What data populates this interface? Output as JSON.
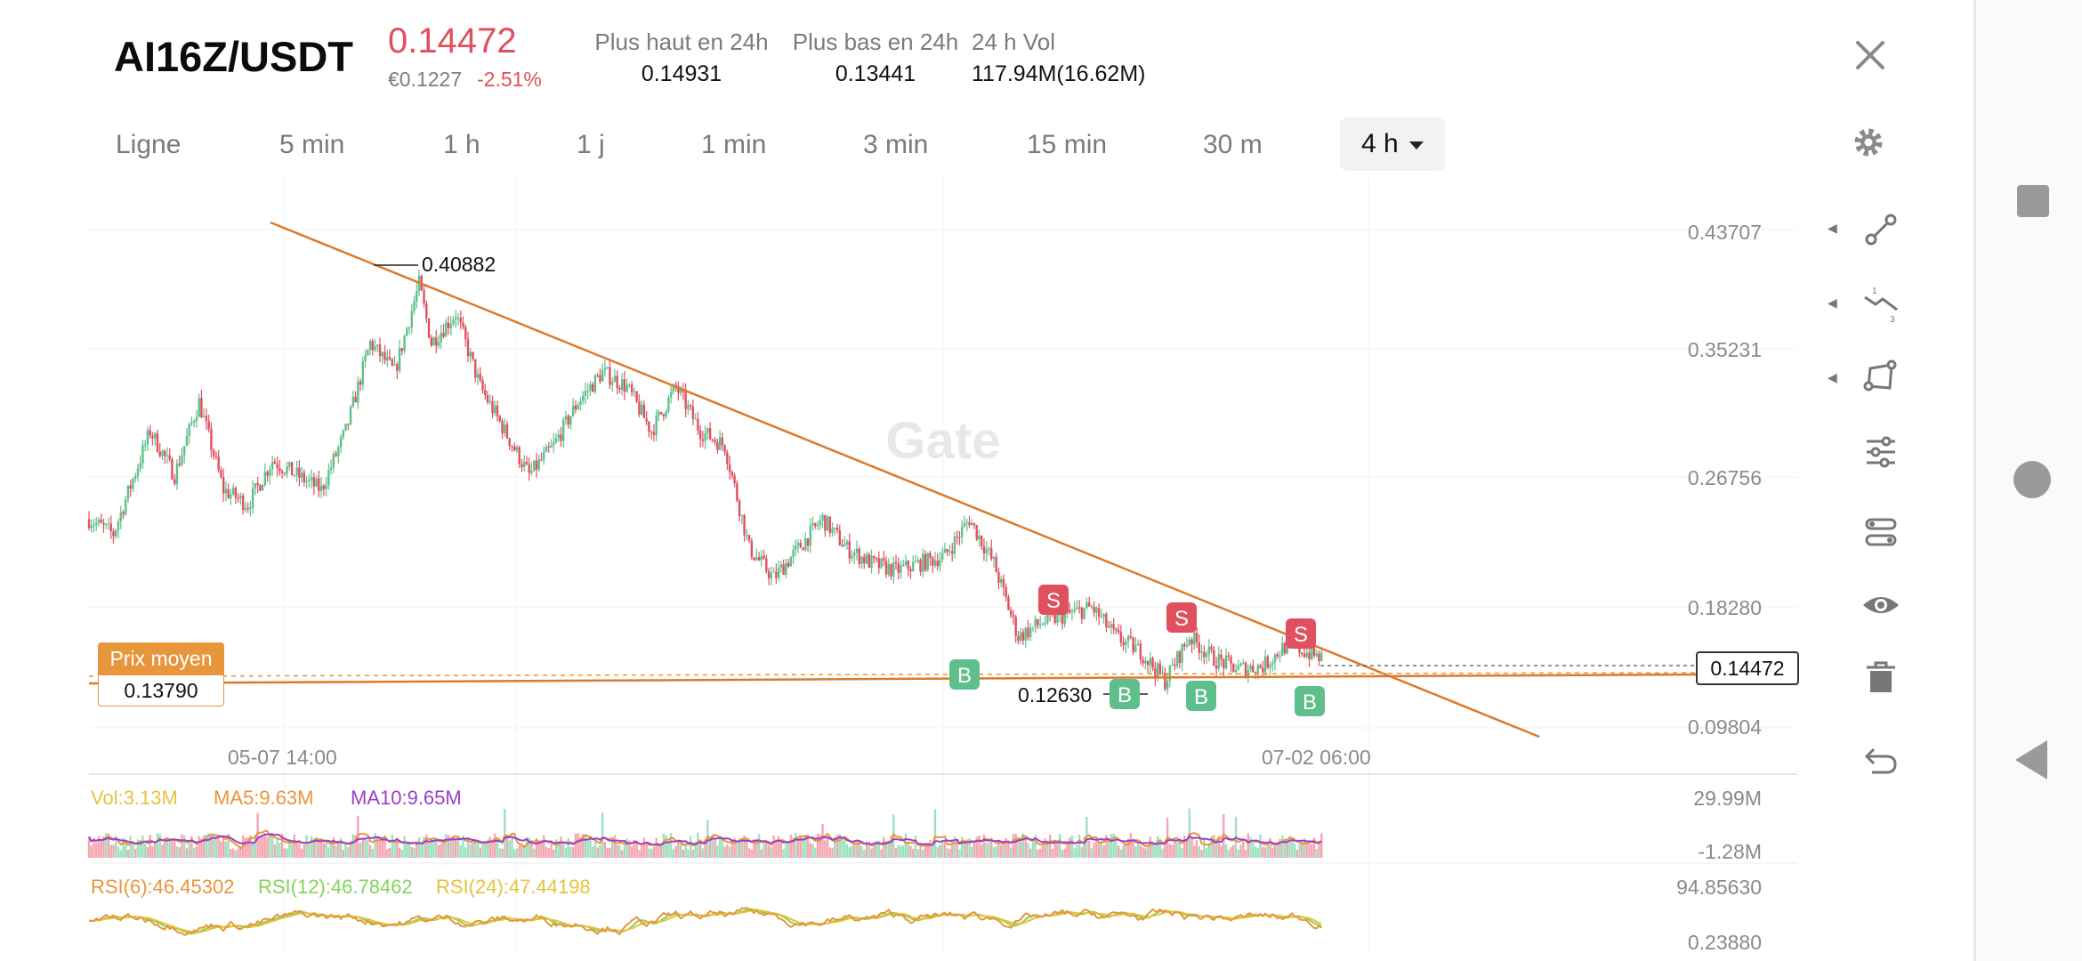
{
  "header": {
    "pair": "AI16Z/USDT",
    "price": "0.14472",
    "eur_price": "€0.1227",
    "change": "-2.51%",
    "stats": [
      {
        "label": "Plus haut en 24h",
        "value": "0.14931"
      },
      {
        "label": "Plus bas en 24h",
        "value": "0.13441"
      },
      {
        "label": "24 h Vol",
        "value": "117.94M(16.62M)"
      }
    ]
  },
  "tabs": [
    {
      "label": "Ligne"
    },
    {
      "label": "5 min"
    },
    {
      "label": "1 h"
    },
    {
      "label": "1 j"
    },
    {
      "label": "1 min"
    },
    {
      "label": "3 min"
    },
    {
      "label": "15 min"
    },
    {
      "label": "30 m"
    },
    {
      "label": "4 h",
      "active": true
    }
  ],
  "chart": {
    "watermark": "Gate",
    "y_ticks": [
      "0.43707",
      "0.35231",
      "0.26756",
      "0.18280",
      "0.09804"
    ],
    "x_ticks": [
      "05-07 14:00",
      "07-02 06:00"
    ],
    "high_marker": "0.40882",
    "low_marker": "0.12630",
    "current_price": "0.14472",
    "avg_price_label": "Prix moyen",
    "avg_price_value": "0.13790",
    "trade_labels": {
      "sell": "S",
      "buy": "B"
    }
  },
  "volume": {
    "vol_label": "Vol:3.13M",
    "ma5_label": "MA5:9.63M",
    "ma10_label": "MA10:9.65M",
    "y_top": "29.99M",
    "y_bottom": "-1.28M"
  },
  "rsi": {
    "rsi6_label": "RSI(6):46.45302",
    "rsi12_label": "RSI(12):46.78462",
    "rsi24_label": "RSI(24):47.44198",
    "y_top": "94.85630",
    "y_bottom": "0.23880"
  },
  "colors": {
    "up": "#5fbf8c",
    "down": "#e0505e",
    "trend": "#dc7a2c",
    "avg": "#e8963b",
    "ma5": "#e8963b",
    "ma10": "#9b3fc9",
    "vol": "#e6c33c",
    "rsi12": "#86d35a"
  },
  "toolbar": {
    "icons": [
      "line-draw-icon",
      "fibonacci-icon",
      "shape-icon",
      "indicator-settings-icon",
      "layers-icon",
      "visibility-icon",
      "delete-icon",
      "undo-icon"
    ]
  }
}
